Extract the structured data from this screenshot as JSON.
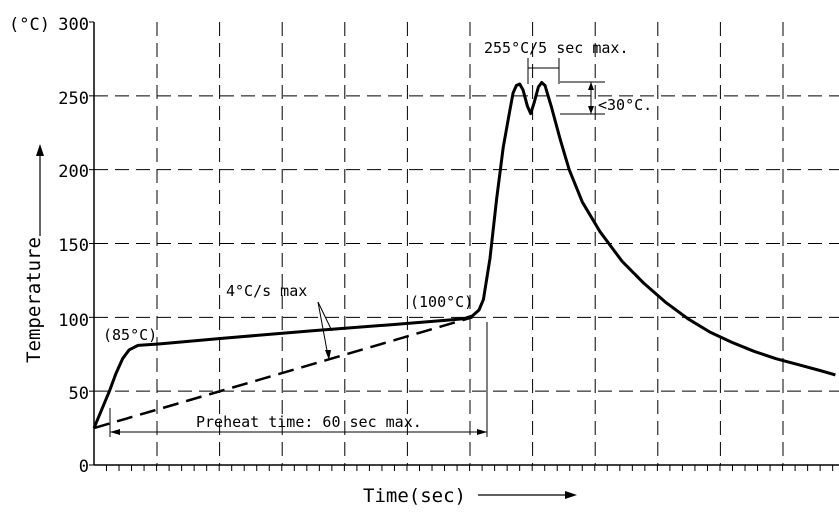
{
  "chart_data": {
    "type": "line",
    "title": "",
    "xlabel": "Time(sec)",
    "ylabel": "Temperature",
    "yunit": "(°C)",
    "ylim": [
      0,
      300
    ],
    "yticks": [
      "0",
      "50",
      "100",
      "150",
      "200",
      "250",
      "300"
    ],
    "xticks_labeled": false,
    "grid": true,
    "series": [
      {
        "values": [
          [
            0,
            25
          ],
          [
            7,
            50
          ],
          [
            10,
            62
          ],
          [
            13,
            72
          ],
          [
            16,
            78
          ],
          [
            20,
            81
          ],
          [
            30,
            82
          ],
          [
            60,
            86
          ],
          [
            100,
            91
          ],
          [
            135,
            95
          ],
          [
            160,
            98
          ],
          [
            168,
            99
          ],
          [
            172,
            101
          ],
          [
            175,
            105
          ],
          [
            177,
            112
          ],
          [
            180,
            140
          ],
          [
            183,
            180
          ],
          [
            186,
            215
          ],
          [
            189,
            240
          ],
          [
            190.5,
            252
          ],
          [
            192,
            257
          ],
          [
            193.5,
            258
          ],
          [
            195,
            254
          ],
          [
            197,
            243
          ],
          [
            198.5,
            238
          ],
          [
            200,
            245
          ],
          [
            202,
            256
          ],
          [
            203.5,
            259
          ],
          [
            205,
            257
          ],
          [
            208,
            242
          ],
          [
            212,
            220
          ],
          [
            216,
            200
          ],
          [
            222,
            178
          ],
          [
            230,
            158
          ],
          [
            240,
            138
          ],
          [
            250,
            123
          ],
          [
            260,
            110
          ],
          [
            270,
            99
          ],
          [
            280,
            90
          ],
          [
            290,
            83
          ],
          [
            300,
            77
          ],
          [
            310,
            72
          ],
          [
            320,
            68
          ],
          [
            330,
            64
          ],
          [
            337,
            61
          ]
        ]
      },
      {
        "style": "dashed",
        "values": [
          [
            0,
            25
          ],
          [
            172,
            100
          ]
        ]
      }
    ],
    "annotations": {
      "peak": "255°C/5 sec max.",
      "delta": "<30°C.",
      "ramp": "4°C/s max",
      "t85": "(85°C)",
      "t100": "(100°C)",
      "preheat": "Preheat time: 60 sec max."
    }
  }
}
